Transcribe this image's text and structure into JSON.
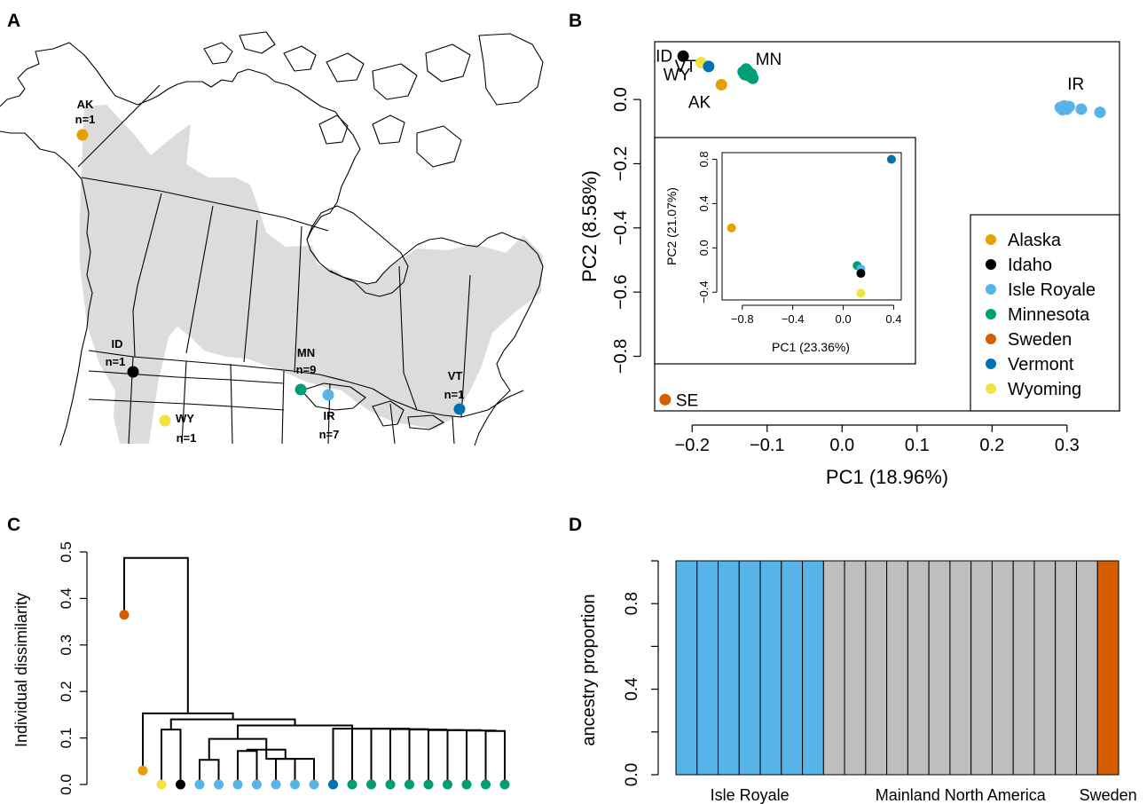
{
  "colors": {
    "Alaska": "#E69F00",
    "Idaho": "#000000",
    "Isle Royale": "#56B4E9",
    "Minnesota": "#009E73",
    "Sweden": "#D55E00",
    "Vermont": "#0072B2",
    "Wyoming": "#F0E442",
    "mainland_bar": "#BEBEBE",
    "range_fill": "#DCDCDC"
  },
  "panels": {
    "a": "A",
    "b": "B",
    "c": "C",
    "d": "D"
  },
  "chart_data": [
    {
      "panel": "A",
      "type": "map",
      "sites": [
        {
          "code": "AK",
          "n": "n=1",
          "population": "Alaska"
        },
        {
          "code": "ID",
          "n": "n=1",
          "population": "Idaho"
        },
        {
          "code": "WY",
          "n": "n=1",
          "population": "Wyoming"
        },
        {
          "code": "MN",
          "n": "n=9",
          "population": "Minnesota"
        },
        {
          "code": "IR",
          "n": "n=7",
          "population": "Isle Royale"
        },
        {
          "code": "VT",
          "n": "n=1",
          "population": "Vermont"
        }
      ]
    },
    {
      "panel": "B",
      "type": "scatter",
      "xlabel": "PC1 (18.96%)",
      "ylabel": "PC2 (8.58%)",
      "xlim": [
        -0.25,
        0.37
      ],
      "ylim": [
        -0.97,
        0.18
      ],
      "xticks": [
        -0.2,
        -0.1,
        0.0,
        0.1,
        0.2,
        0.3
      ],
      "xtick_labels": [
        "−0.2",
        "−0.1",
        "0.0",
        "0.1",
        "0.2",
        "0.3"
      ],
      "yticks": [
        0.0,
        -0.2,
        -0.4,
        -0.6,
        -0.8
      ],
      "ytick_labels": [
        "0.0",
        "−0.2",
        "−0.4",
        "−0.6",
        "−0.8"
      ],
      "legend_position": "bottom-right",
      "legend": [
        "Alaska",
        "Idaho",
        "Isle Royale",
        "Minnesota",
        "Sweden",
        "Vermont",
        "Wyoming"
      ],
      "points": [
        {
          "group": "Idaho",
          "label": "ID",
          "x": -0.212,
          "y": 0.135
        },
        {
          "group": "Wyoming",
          "label": "WY",
          "x": -0.188,
          "y": 0.115
        },
        {
          "group": "Vermont",
          "label": "VT",
          "x": -0.178,
          "y": 0.103
        },
        {
          "group": "Alaska",
          "label": "AK",
          "x": -0.161,
          "y": 0.046
        },
        {
          "group": "Minnesota",
          "label": "MN",
          "x": -0.132,
          "y": 0.086
        },
        {
          "group": "Minnesota",
          "x": -0.128,
          "y": 0.095
        },
        {
          "group": "Minnesota",
          "x": -0.127,
          "y": 0.076
        },
        {
          "group": "Minnesota",
          "x": -0.124,
          "y": 0.082
        },
        {
          "group": "Minnesota",
          "x": -0.122,
          "y": 0.071
        },
        {
          "group": "Minnesota",
          "x": -0.126,
          "y": 0.089
        },
        {
          "group": "Minnesota",
          "x": -0.119,
          "y": 0.066
        },
        {
          "group": "Minnesota",
          "x": -0.13,
          "y": 0.078
        },
        {
          "group": "Minnesota",
          "x": -0.121,
          "y": 0.079
        },
        {
          "group": "Isle Royale",
          "label": "IR",
          "x": 0.291,
          "y": -0.025
        },
        {
          "group": "Isle Royale",
          "x": 0.296,
          "y": -0.02
        },
        {
          "group": "Isle Royale",
          "x": 0.3,
          "y": -0.03
        },
        {
          "group": "Isle Royale",
          "x": 0.303,
          "y": -0.022
        },
        {
          "group": "Isle Royale",
          "x": 0.294,
          "y": -0.032
        },
        {
          "group": "Isle Royale",
          "x": 0.319,
          "y": -0.03
        },
        {
          "group": "Isle Royale",
          "x": 0.344,
          "y": -0.04
        },
        {
          "group": "Sweden",
          "label": "SE",
          "x": -0.236,
          "y": -0.935
        }
      ],
      "inset": {
        "xlabel": "PC1 (23.36%)",
        "ylabel": "PC2 (21.07%)",
        "xlim": [
          -0.96,
          0.46
        ],
        "ylim": [
          -0.47,
          0.86
        ],
        "xticks": [
          -0.8,
          -0.4,
          0.0,
          0.4
        ],
        "xtick_labels": [
          "−0.8",
          "−0.4",
          "0.0",
          "0.4"
        ],
        "yticks": [
          0.8,
          0.4,
          0.0,
          -0.4
        ],
        "ytick_labels": [
          "0.8",
          "0.4",
          "0.0",
          "−0.4"
        ],
        "points": [
          {
            "group": "Alaska",
            "x": -0.885,
            "y": 0.18
          },
          {
            "group": "Vermont",
            "x": 0.382,
            "y": 0.8
          },
          {
            "group": "Minnesota",
            "x": 0.11,
            "y": -0.16
          },
          {
            "group": "Isle Royale",
            "x": 0.14,
            "y": -0.19
          },
          {
            "group": "Idaho",
            "x": 0.14,
            "y": -0.23
          },
          {
            "group": "Wyoming",
            "x": 0.14,
            "y": -0.41
          }
        ]
      }
    },
    {
      "panel": "C",
      "type": "dendrogram",
      "ylabel": "Individual dissimilarity",
      "ylim": [
        0,
        0.5
      ],
      "yticks": [
        0.0,
        0.1,
        0.2,
        0.3,
        0.4,
        0.5
      ],
      "ytick_labels": [
        "0.0",
        "0.1",
        "0.2",
        "0.3",
        "0.4",
        "0.5"
      ],
      "leaves": [
        "Sweden",
        "Alaska",
        "Wyoming",
        "Idaho",
        "Isle Royale",
        "Isle Royale",
        "Isle Royale",
        "Isle Royale",
        "Isle Royale",
        "Isle Royale",
        "Isle Royale",
        "Vermont",
        "Minnesota",
        "Minnesota",
        "Minnesota",
        "Minnesota",
        "Minnesota",
        "Minnesota",
        "Minnesota",
        "Minnesota",
        "Minnesota"
      ],
      "leaf_heights": [
        0.365,
        0.03,
        0.0,
        0.0,
        0.0,
        0.0,
        0.0,
        0.0,
        0.0,
        0.0,
        0.0,
        0.0,
        0.0,
        0.0,
        0.0,
        0.0,
        0.0,
        0.0,
        0.0,
        0.0,
        0.0
      ],
      "merge_heights": {
        "root": 0.487,
        "sweden_rest": 0.487,
        "alaska_rest": 0.153,
        "wy_id": 0.118,
        "wyid_main": 0.14,
        "ir_group": 0.098,
        "main": 0.127,
        "ir_sub1": 0.053,
        "ir_sub2": 0.072,
        "ir_sub3": 0.075,
        "ir_sub4": 0.055,
        "mn_chain": [
          0.12,
          0.12,
          0.119,
          0.118,
          0.117,
          0.117,
          0.116,
          0.115
        ]
      }
    },
    {
      "panel": "D",
      "type": "bar",
      "stacked": true,
      "ylabel": "ancestry proportion",
      "ylim": [
        0,
        1
      ],
      "yticks": [
        0.0,
        0.4,
        0.8
      ],
      "ytick_labels": [
        "0.0",
        "0.4",
        "0.8"
      ],
      "groups": [
        {
          "label": "Isle Royale",
          "count": 7,
          "color_key": "Isle Royale"
        },
        {
          "label": "Mainland North America",
          "count": 13,
          "color_key": "mainland_bar"
        },
        {
          "label": "Sweden",
          "count": 1,
          "color_key": "Sweden"
        }
      ],
      "values": [
        1,
        1,
        1,
        1,
        1,
        1,
        1,
        1,
        1,
        1,
        1,
        1,
        1,
        1,
        1,
        1,
        1,
        1,
        1,
        1,
        1
      ]
    }
  ]
}
